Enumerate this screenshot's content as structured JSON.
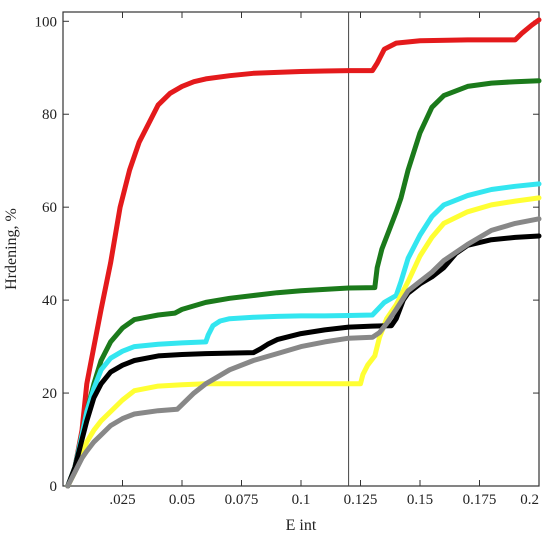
{
  "chart_data": {
    "type": "line",
    "title": "",
    "xlabel": "E int",
    "ylabel": "Hrdening, %",
    "xlim": [
      0,
      0.2
    ],
    "ylim": [
      0,
      102
    ],
    "x_ticks": [
      0.025,
      0.05,
      0.075,
      0.1,
      0.125,
      0.15,
      0.175,
      0.2
    ],
    "x_tick_labels": [
      ".025",
      "0.05",
      "0.075",
      "0.1",
      "0.125",
      "0.15",
      "0.175",
      "0.2"
    ],
    "y_ticks": [
      0,
      20,
      40,
      60,
      80,
      100
    ],
    "y_tick_labels": [
      "0",
      "20",
      "40",
      "60",
      "80",
      "100"
    ],
    "grid": false,
    "reference_line_x": 0.12,
    "series": [
      {
        "color": "#e41a1c",
        "x": [
          0.002,
          0.005,
          0.008,
          0.01,
          0.013,
          0.016,
          0.02,
          0.024,
          0.028,
          0.032,
          0.036,
          0.04,
          0.045,
          0.05,
          0.055,
          0.06,
          0.07,
          0.08,
          0.09,
          0.1,
          0.11,
          0.12,
          0.13,
          0.132,
          0.135,
          0.14,
          0.15,
          0.17,
          0.19,
          0.193,
          0.197,
          0.2
        ],
        "y": [
          0,
          4,
          12,
          22,
          30,
          38,
          48,
          60,
          68,
          74,
          78,
          82,
          84.5,
          86,
          87,
          87.6,
          88.3,
          88.8,
          89,
          89.2,
          89.3,
          89.4,
          89.4,
          91,
          94,
          95.3,
          95.8,
          96,
          96,
          97.5,
          99.2,
          100.3
        ]
      },
      {
        "color": "#1b7a1b",
        "x": [
          0.002,
          0.005,
          0.008,
          0.01,
          0.013,
          0.016,
          0.02,
          0.025,
          0.03,
          0.04,
          0.047,
          0.05,
          0.06,
          0.07,
          0.08,
          0.09,
          0.1,
          0.11,
          0.12,
          0.131,
          0.132,
          0.134,
          0.137,
          0.14,
          0.142,
          0.145,
          0.15,
          0.155,
          0.16,
          0.17,
          0.18,
          0.19,
          0.2
        ],
        "y": [
          0,
          4,
          11,
          16,
          22,
          27,
          31,
          34,
          35.8,
          36.8,
          37.2,
          38,
          39.5,
          40.4,
          41,
          41.6,
          42,
          42.3,
          42.6,
          42.7,
          47,
          51,
          55,
          59,
          62,
          68,
          76,
          81.5,
          84,
          86,
          86.7,
          87,
          87.2
        ]
      },
      {
        "color": "#33e6f0",
        "x": [
          0.002,
          0.005,
          0.008,
          0.01,
          0.013,
          0.016,
          0.02,
          0.025,
          0.03,
          0.04,
          0.05,
          0.06,
          0.061,
          0.063,
          0.066,
          0.07,
          0.08,
          0.09,
          0.1,
          0.11,
          0.12,
          0.13,
          0.135,
          0.14,
          0.142,
          0.145,
          0.15,
          0.155,
          0.16,
          0.17,
          0.18,
          0.19,
          0.2
        ],
        "y": [
          0,
          4,
          11,
          16,
          21,
          25,
          27.5,
          29,
          30,
          30.5,
          30.8,
          31,
          32.5,
          34.5,
          35.5,
          36,
          36.3,
          36.5,
          36.6,
          36.6,
          36.7,
          36.8,
          39.5,
          41,
          44,
          49,
          54,
          58,
          60.5,
          62.5,
          63.8,
          64.5,
          65
        ]
      },
      {
        "color": "#ffff33",
        "x": [
          0.002,
          0.005,
          0.008,
          0.01,
          0.013,
          0.016,
          0.02,
          0.025,
          0.03,
          0.04,
          0.05,
          0.06,
          0.07,
          0.08,
          0.09,
          0.1,
          0.11,
          0.12,
          0.125,
          0.126,
          0.128,
          0.131,
          0.133,
          0.136,
          0.14,
          0.145,
          0.15,
          0.155,
          0.16,
          0.17,
          0.18,
          0.19,
          0.2
        ],
        "y": [
          0,
          3,
          7,
          9.5,
          12,
          14,
          16,
          18.5,
          20.5,
          21.5,
          21.8,
          22,
          22,
          22,
          22,
          22,
          22,
          22,
          22,
          24,
          26,
          28,
          32,
          36,
          39,
          44,
          49.5,
          53.5,
          56.5,
          59,
          60.5,
          61.3,
          62
        ]
      },
      {
        "color": "#000000",
        "x": [
          0.002,
          0.005,
          0.008,
          0.01,
          0.013,
          0.016,
          0.02,
          0.025,
          0.03,
          0.04,
          0.05,
          0.06,
          0.07,
          0.08,
          0.083,
          0.086,
          0.09,
          0.1,
          0.11,
          0.12,
          0.13,
          0.138,
          0.14,
          0.143,
          0.145,
          0.15,
          0.155,
          0.16,
          0.165,
          0.17,
          0.18,
          0.19,
          0.2
        ],
        "y": [
          0,
          4,
          10,
          14,
          19,
          22,
          24.5,
          26,
          27,
          28,
          28.3,
          28.5,
          28.6,
          28.7,
          29.5,
          30.5,
          31.5,
          32.8,
          33.6,
          34.2,
          34.4,
          34.5,
          36,
          40,
          41.5,
          43.5,
          45,
          47,
          50,
          51.8,
          53,
          53.5,
          53.8
        ]
      },
      {
        "color": "#888888",
        "x": [
          0.002,
          0.005,
          0.008,
          0.01,
          0.013,
          0.016,
          0.02,
          0.025,
          0.03,
          0.04,
          0.048,
          0.05,
          0.055,
          0.06,
          0.065,
          0.07,
          0.08,
          0.09,
          0.1,
          0.11,
          0.12,
          0.13,
          0.133,
          0.136,
          0.14,
          0.145,
          0.15,
          0.155,
          0.16,
          0.17,
          0.18,
          0.19,
          0.2
        ],
        "y": [
          0,
          3,
          6,
          7.5,
          9.5,
          11,
          13,
          14.5,
          15.5,
          16.2,
          16.5,
          17.5,
          20,
          22,
          23.5,
          25,
          27,
          28.5,
          30,
          31,
          31.8,
          32,
          33,
          35,
          38,
          42,
          44,
          46,
          48.5,
          52,
          55,
          56.5,
          57.5
        ]
      }
    ]
  }
}
